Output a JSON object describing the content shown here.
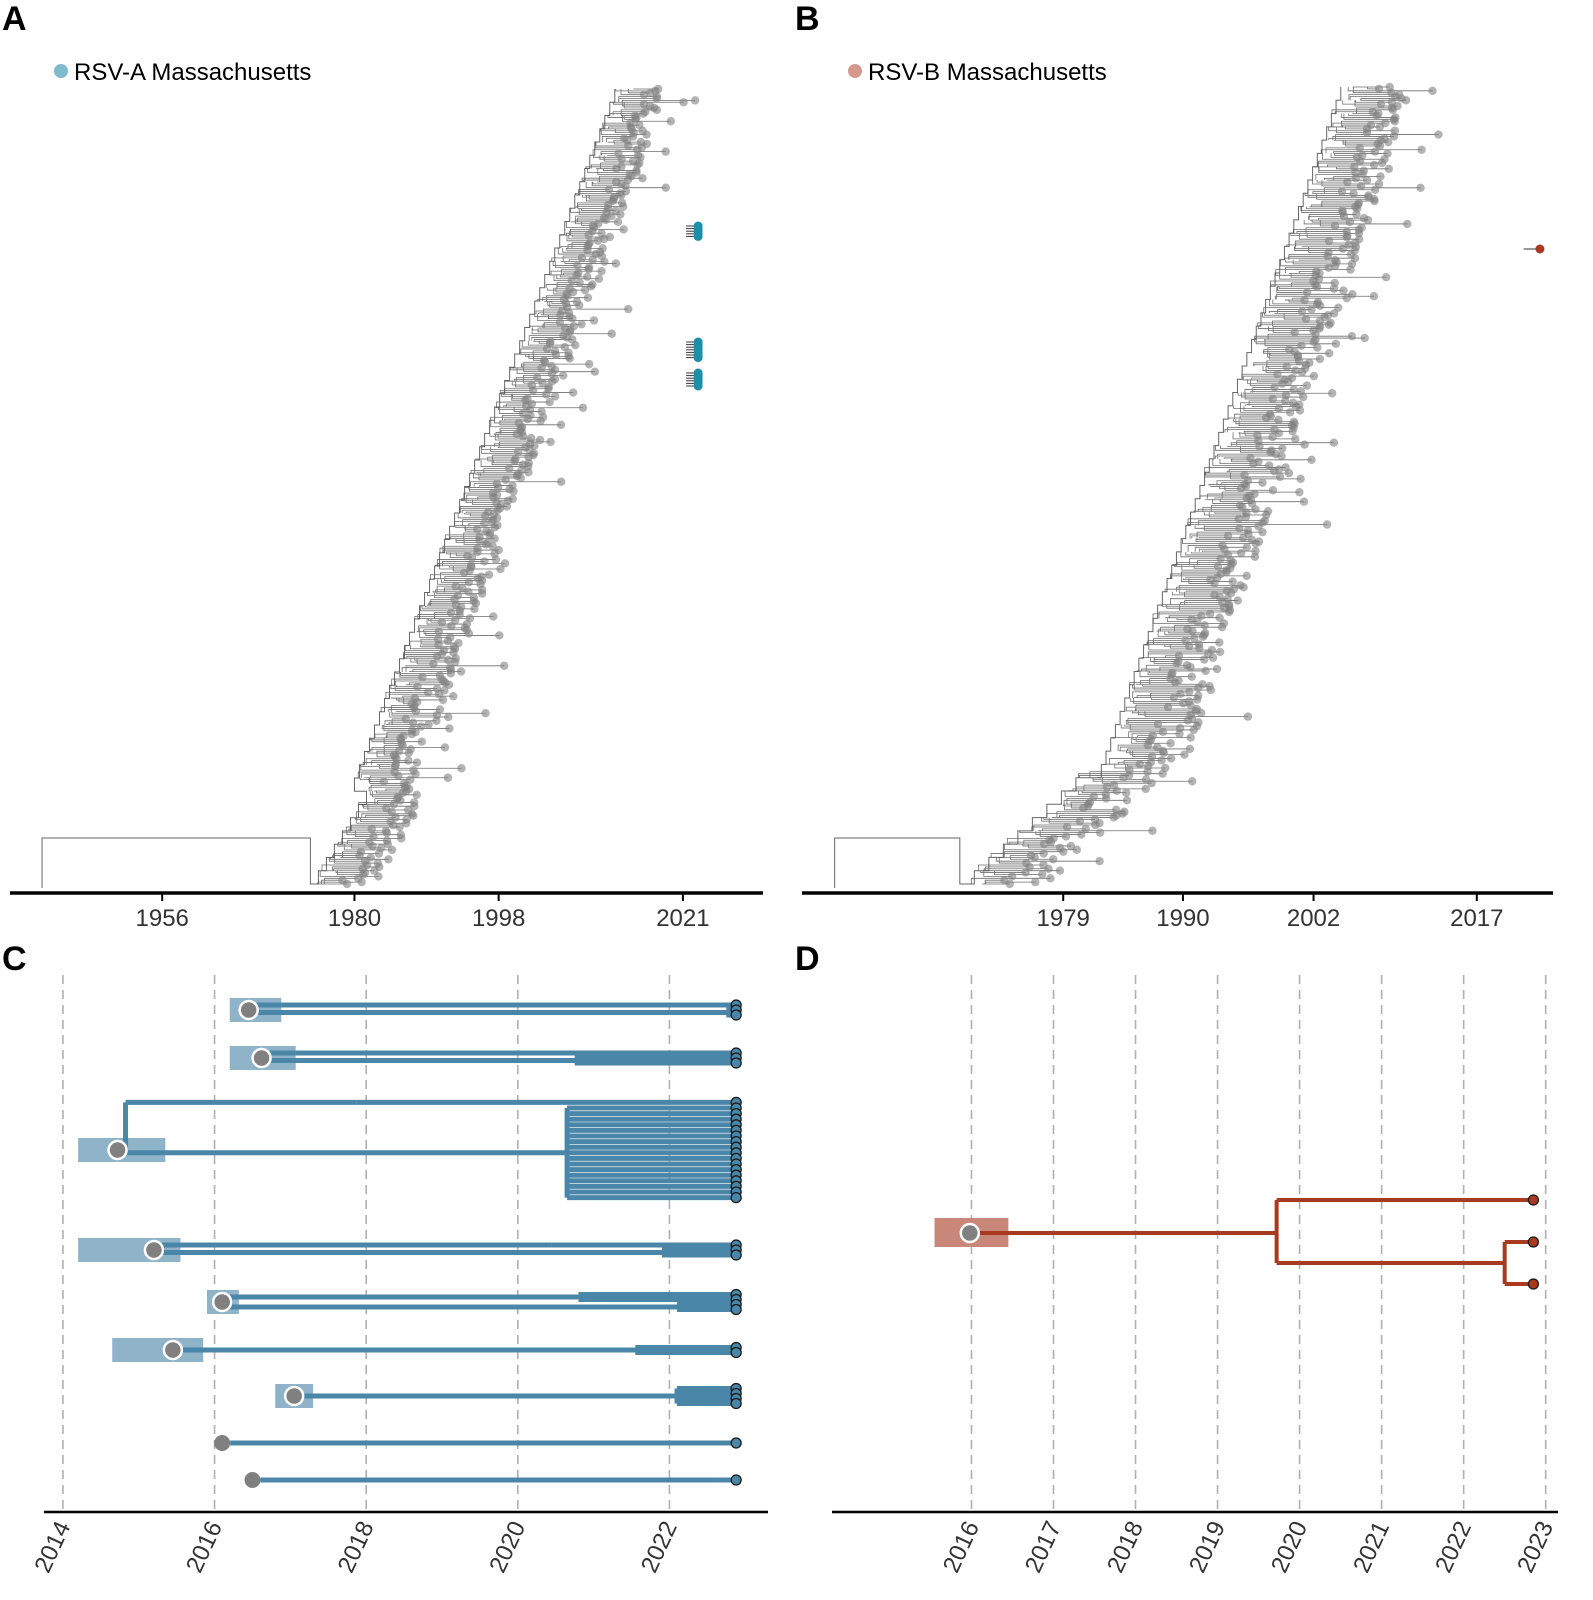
{
  "panels": {
    "A": {
      "label": "A"
    },
    "B": {
      "label": "B"
    },
    "C": {
      "label": "C"
    },
    "D": {
      "label": "D"
    }
  },
  "colors": {
    "rsv_a": "#4a86a8",
    "rsv_a_light": "#8fb3c9",
    "rsv_a_legend": "#7fbccb",
    "rsv_a_tip": "#1f8ea8",
    "rsv_b": "#a83a20",
    "rsv_b_light": "#c9877a",
    "rsv_b_legend": "#d4998c",
    "background_tip": "#808080",
    "branch": "#555555",
    "grid": "#b0b0b0"
  },
  "chart_data": [
    {
      "id": "A",
      "type": "tree",
      "title": "",
      "legend": [
        {
          "label": "RSV-A Massachusetts",
          "color": "#7fbccb"
        }
      ],
      "legend_position": "top-left",
      "x_ticks": [
        1956,
        1980,
        1998,
        2021
      ],
      "xlim": [
        1937,
        2031
      ],
      "root_year": 1941,
      "latest_year": 2023,
      "highlighted_tip_groups": 3,
      "notes": "Time-scaled phylogeny of global RSV-A with Massachusetts tips highlighted in teal near 2022-2023"
    },
    {
      "id": "B",
      "type": "tree",
      "title": "",
      "legend": [
        {
          "label": "RSV-B Massachusetts",
          "color": "#d4998c"
        }
      ],
      "legend_position": "top-left",
      "x_ticks": [
        1979,
        1990,
        2002,
        2017
      ],
      "xlim": [
        1955,
        2024
      ],
      "root_year": 1958,
      "latest_year": 2023,
      "highlighted_tip_groups": 1,
      "notes": "Time-scaled phylogeny of global RSV-B with one Massachusetts tip highlighted near 2023"
    },
    {
      "id": "C",
      "type": "tree",
      "x_ticks": [
        2014,
        2016,
        2018,
        2020,
        2022
      ],
      "xlim": [
        2013.75,
        2023.3
      ],
      "tip_year": 2022.88,
      "clades": [
        {
          "tmrca": 2016.45,
          "ci": [
            2016.2,
            2016.88
          ],
          "tips": 3,
          "nodes": [
            {
              "year": 2016.88,
              "tips": 1
            },
            {
              "year": 2022.75,
              "tips": 2
            }
          ]
        },
        {
          "tmrca": 2016.62,
          "ci": [
            2016.2,
            2017.07
          ],
          "tips": 3,
          "nodes": [
            {
              "year": 2017.07,
              "tips": 1
            },
            {
              "year": 2020.75,
              "tips": 2
            }
          ]
        },
        {
          "tmrca": 2014.72,
          "ci": [
            2014.2,
            2015.35
          ],
          "tips": 18,
          "nodes": [
            {
              "year": 2017.87,
              "tips": 1
            },
            {
              "year": 2020.65,
              "tips": 17
            }
          ]
        },
        {
          "tmrca": 2015.2,
          "ci": [
            2014.2,
            2015.55
          ],
          "tips": 3,
          "nodes": [
            {
              "year": 2020.45,
              "tips": 1
            },
            {
              "year": 2021.9,
              "tips": 2
            }
          ]
        },
        {
          "tmrca": 2016.1,
          "ci": [
            2015.9,
            2016.32
          ],
          "tips": 4,
          "nodes": [
            {
              "year": 2020.8,
              "tips": 2
            },
            {
              "year": 2022.1,
              "tips": 2
            }
          ]
        },
        {
          "tmrca": 2015.45,
          "ci": [
            2014.65,
            2015.85
          ],
          "tips": 2,
          "nodes": [
            {
              "year": 2021.55,
              "tips": 2
            }
          ]
        },
        {
          "tmrca": 2017.05,
          "ci": [
            2016.8,
            2017.3
          ],
          "tips": 4,
          "nodes": [
            {
              "year": 2022.1,
              "tips": 4
            }
          ]
        },
        {
          "tmrca": 2016.1,
          "ci": null,
          "tips": 1,
          "nodes": []
        },
        {
          "tmrca": 2016.5,
          "ci": null,
          "tips": 1,
          "nodes": []
        }
      ]
    },
    {
      "id": "D",
      "type": "tree",
      "x_ticks": [
        2016,
        2017,
        2018,
        2019,
        2020,
        2021,
        2022,
        2023
      ],
      "xlim": [
        2014.3,
        2023.15
      ],
      "tip_year": 2022.85,
      "clades": [
        {
          "tmrca": 2015.98,
          "ci": [
            2015.55,
            2016.45
          ],
          "tips": 3,
          "nodes": [
            {
              "year": 2019.72,
              "children": [
                "tip",
                "n2"
              ]
            },
            {
              "id": "n2",
              "year": 2022.5,
              "children": [
                "tip",
                "tip"
              ]
            }
          ]
        }
      ]
    }
  ]
}
